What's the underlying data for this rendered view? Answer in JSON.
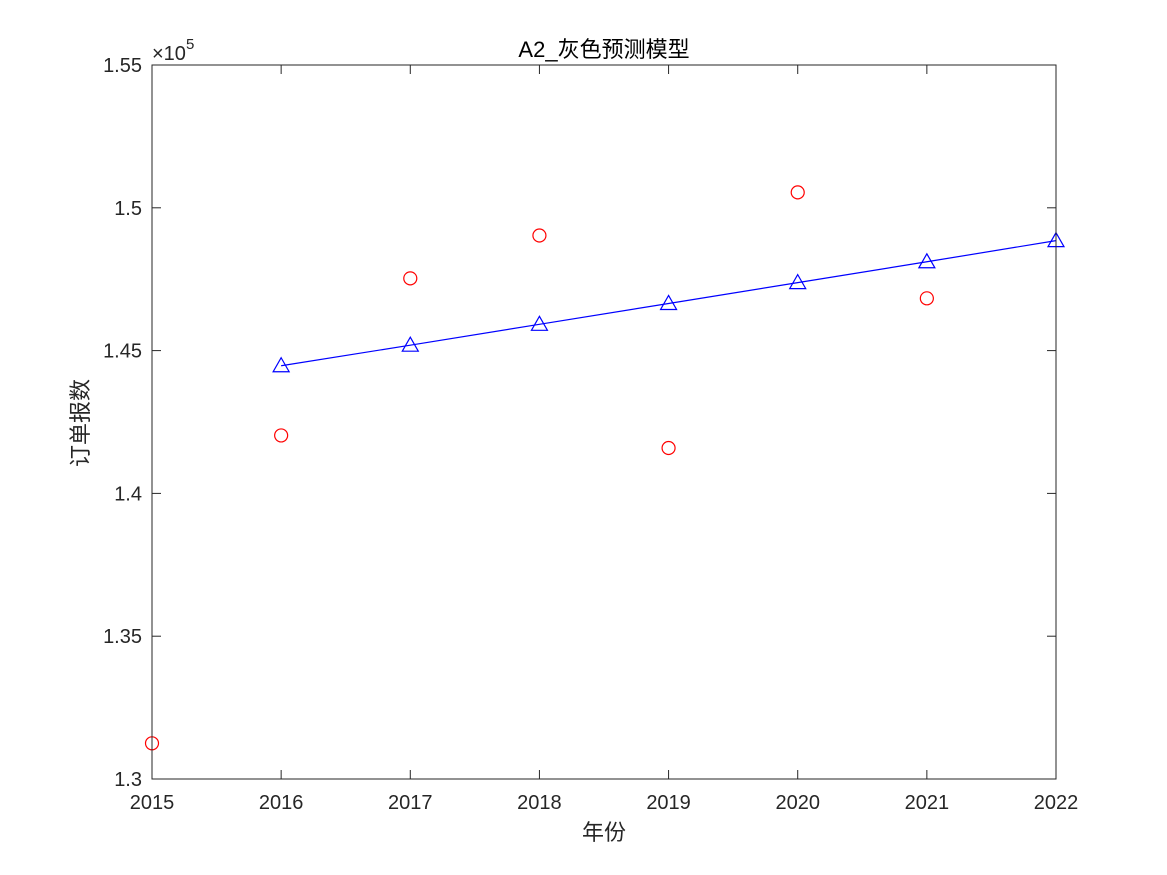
{
  "chart_data": {
    "type": "scatter",
    "title": "A2_灰色预测模型",
    "xlabel": "年份",
    "ylabel": "订单报数",
    "xlim": [
      2015,
      2022
    ],
    "ylim": [
      130000,
      155000
    ],
    "y_exponent_label": {
      "base": "×10",
      "power": "5"
    },
    "x_ticks": [
      "2015",
      "2016",
      "2017",
      "2018",
      "2019",
      "2020",
      "2021",
      "2022"
    ],
    "y_ticks": [
      "1.3",
      "1.35",
      "1.4",
      "1.45",
      "1.5",
      "1.55"
    ],
    "y_tick_values": [
      130000,
      135000,
      140000,
      145000,
      150000,
      155000
    ],
    "grid": false,
    "legend": "none",
    "series": [
      {
        "marker": "circle",
        "line": false,
        "color": "#ff0000",
        "x": [
          2015,
          2016,
          2017,
          2018,
          2019,
          2020,
          2021
        ],
        "y": [
          131250,
          142030,
          147530,
          149030,
          141590,
          150540,
          146830
        ]
      },
      {
        "marker": "triangle",
        "line": true,
        "color": "#0000ff",
        "x": [
          2016,
          2017,
          2018,
          2019,
          2020,
          2021,
          2022
        ],
        "y": [
          144470,
          145190,
          145920,
          146650,
          147380,
          148110,
          148850
        ]
      }
    ]
  }
}
